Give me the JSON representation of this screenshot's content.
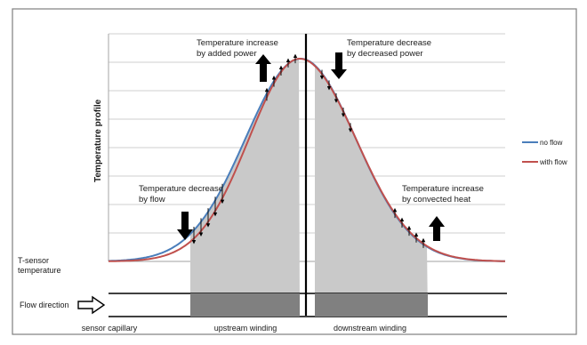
{
  "y_axis_label": "Temperature profile",
  "tsensor_label": {
    "line1": "T-sensor",
    "line2": "temperature"
  },
  "annotations": {
    "upstream_top": {
      "line1": "Temperature increase",
      "line2": "by added power"
    },
    "downstream_top": {
      "line1": "Temperature decrease",
      "line2": "by decreased power"
    },
    "upstream_low": {
      "line1": "Temperature decrease",
      "line2": "by flow"
    },
    "downstream_low": {
      "line1": "Temperature increase",
      "line2": "by convected heat"
    }
  },
  "legend": [
    {
      "label": "no flow",
      "color": "#4a7ebb"
    },
    {
      "label": "with flow",
      "color": "#c0504d"
    }
  ],
  "flow_direction_label": "Flow direction",
  "bottom_labels": {
    "sensor_capillary": "sensor capillary",
    "upstream_winding": "upstream winding",
    "downstream_winding": "downstream winding"
  },
  "colors": {
    "frame": "#7f7f7f",
    "gridline": "#a6a6a6",
    "winding_area": "#c9c9c9",
    "winding_block": "#808080",
    "arrow": "#000000"
  }
}
